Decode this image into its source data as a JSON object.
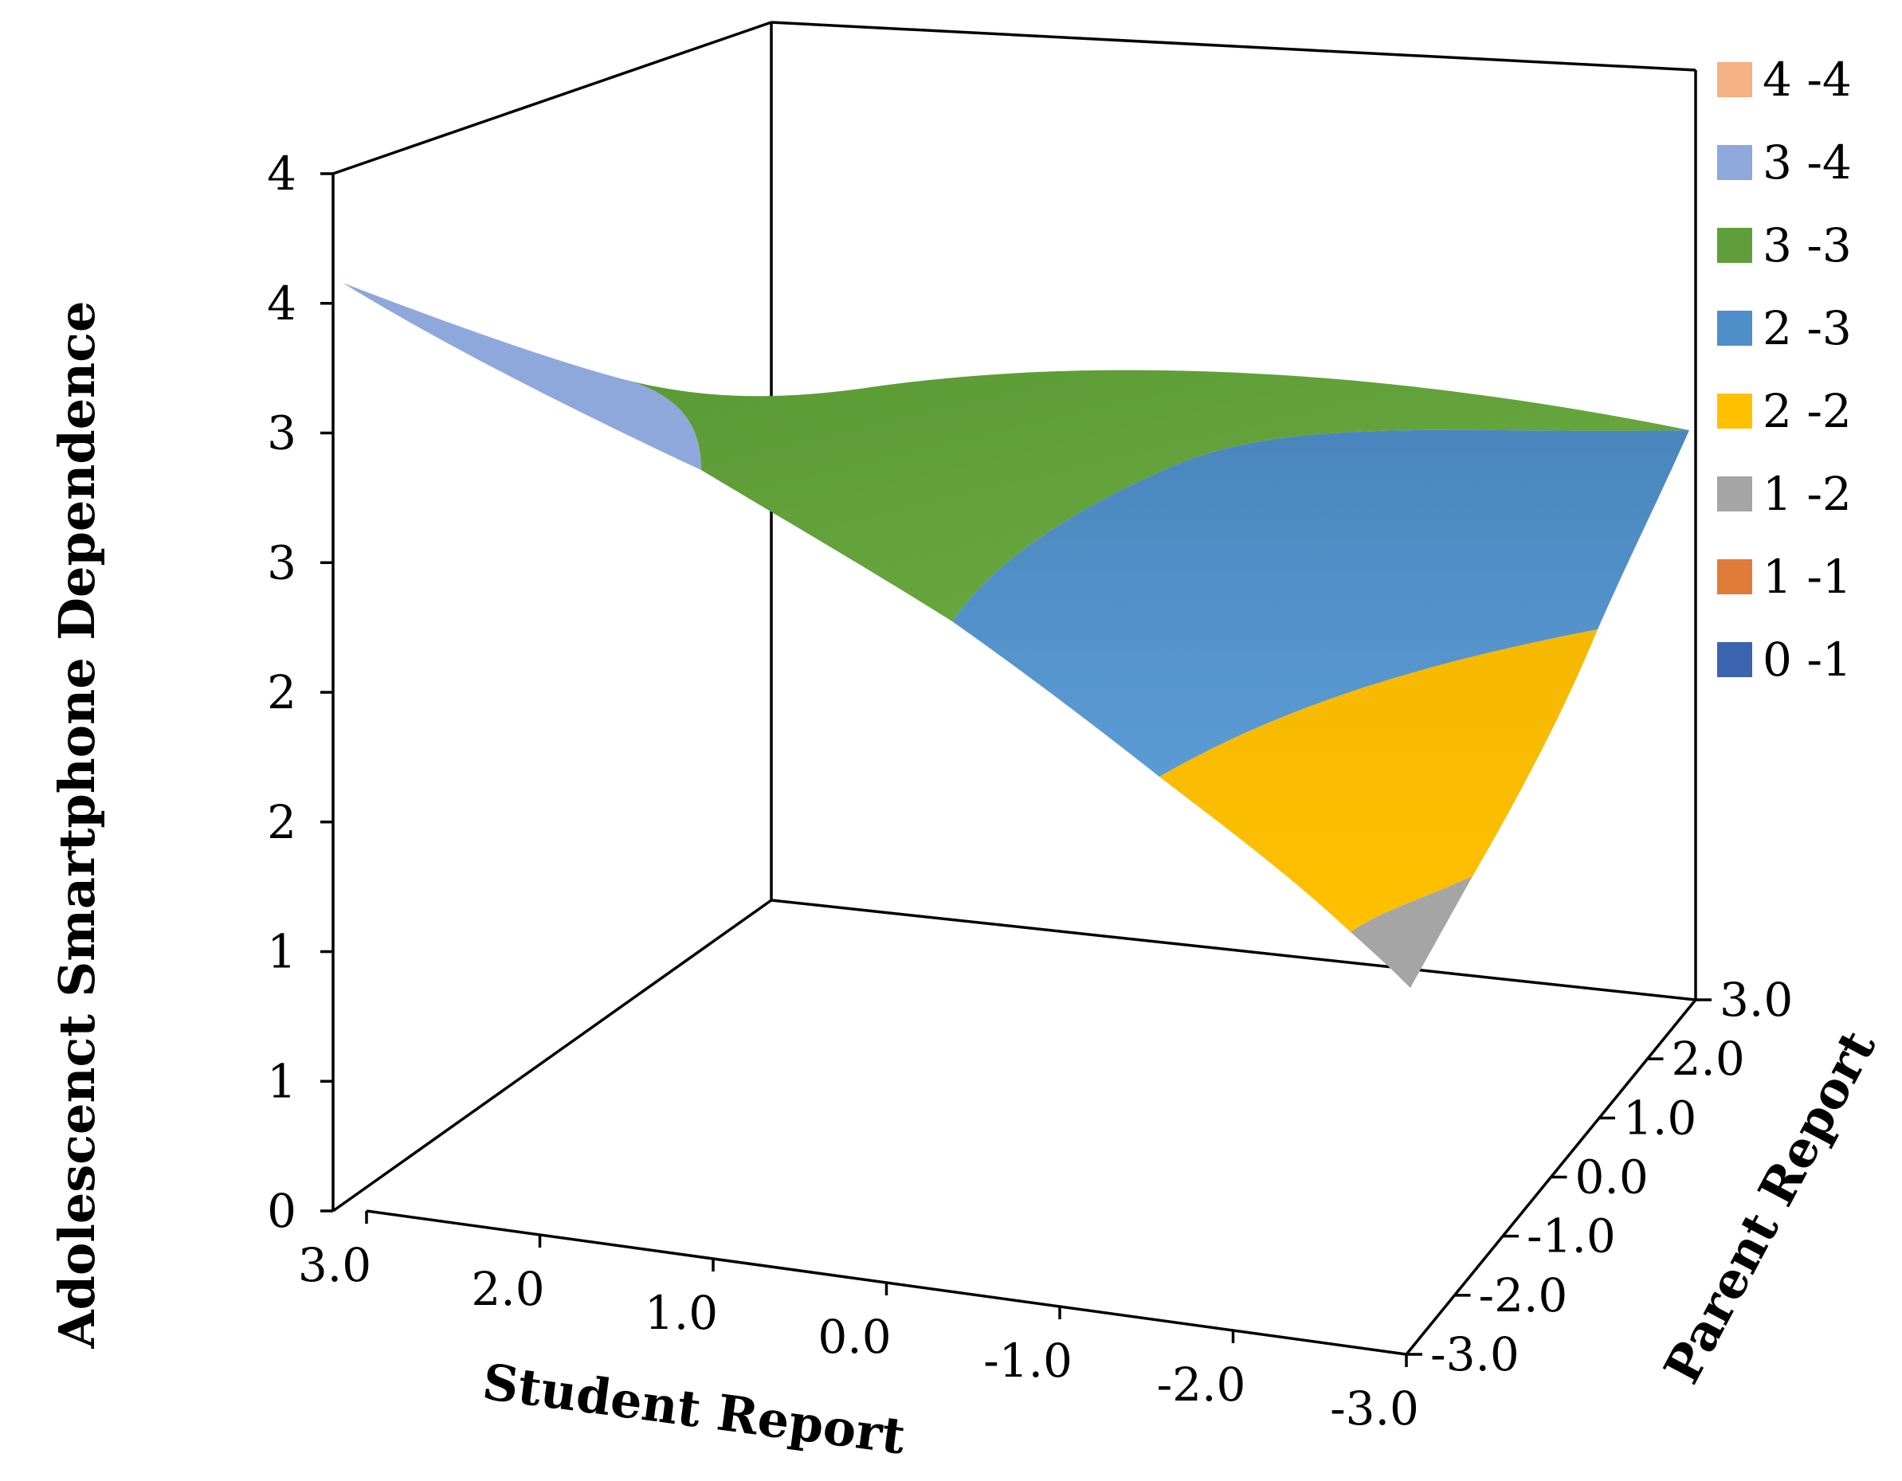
{
  "chart_data": {
    "type": "surface",
    "title": "",
    "z_axis": {
      "label": "Adolescenct Smartphone Dependence",
      "tick_labels": [
        "0",
        "1",
        "1",
        "2",
        "2",
        "3",
        "3",
        "4",
        "4"
      ],
      "range": [
        0,
        4
      ]
    },
    "x_axis": {
      "label": "Student Report",
      "tick_labels": [
        "3.0",
        "2.0",
        "1.0",
        "0.0",
        "-1.0",
        "-2.0",
        "-3.0"
      ],
      "range": [
        -3,
        3
      ]
    },
    "y_axis": {
      "label": "Parent Report",
      "tick_labels": [
        "-3.0",
        "-2.0",
        "-1.0",
        "0.0",
        "1.0",
        "2.0",
        "3.0"
      ],
      "range": [
        -3,
        3
      ]
    },
    "legend": {
      "placement": "right",
      "entries": [
        {
          "label": "4 -4",
          "color": "#f4b183"
        },
        {
          "label": "3 -4",
          "color": "#8fa8dc"
        },
        {
          "label": "3 -3",
          "color": "#5f9e3a"
        },
        {
          "label": "2 -3",
          "color": "#4f8fc9"
        },
        {
          "label": "2 -2",
          "color": "#ffc000"
        },
        {
          "label": "1 -2",
          "color": "#a5a5a5"
        },
        {
          "label": "1 -1",
          "color": "#e07b39"
        },
        {
          "label": "0 -1",
          "color": "#3c63ad"
        }
      ]
    },
    "surface_corners": [
      {
        "student": 3.0,
        "parent": 3.0,
        "z": 3.85
      },
      {
        "student": -3.0,
        "parent": 3.0,
        "z": 3.0
      },
      {
        "student": 3.0,
        "parent": -3.0,
        "z": 3.2
      },
      {
        "student": -3.0,
        "parent": -3.0,
        "z": 1.35
      }
    ],
    "colors": {
      "band_3_4": "#8fa8dc",
      "band_3_3": "#5f9e3a",
      "band_2_3": "#4f8fc9",
      "band_2_2": "#ffc000",
      "band_1_2": "#a5a5a5"
    }
  }
}
